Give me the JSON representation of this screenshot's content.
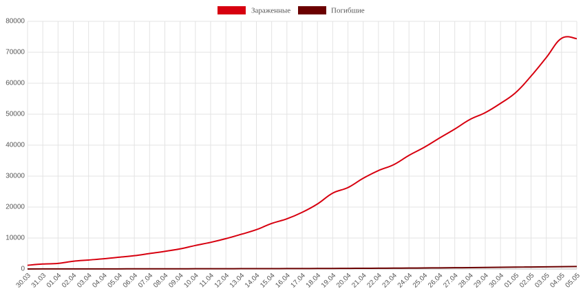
{
  "chart_data": {
    "type": "line",
    "categories": [
      "30.03",
      "31.03",
      "01.04",
      "02.04",
      "03.04",
      "04.04",
      "05.04",
      "06.04",
      "07.04",
      "08.04",
      "09.04",
      "10.04",
      "11.04",
      "12.04",
      "13.04",
      "14.04",
      "15.04",
      "16.04",
      "17.04",
      "18.04",
      "19.04",
      "20.04",
      "21.04",
      "22.04",
      "23.04",
      "24.04",
      "25.04",
      "26.04",
      "27.04",
      "28.04",
      "29.04",
      "30.04",
      "01.05",
      "02.05",
      "03.05",
      "04.05",
      "05.05"
    ],
    "series": [
      {
        "name": "Зараженные",
        "color": "#d7000f",
        "values": [
          1200,
          1600,
          1800,
          2500,
          2900,
          3300,
          3800,
          4300,
          5000,
          5700,
          6500,
          7600,
          8600,
          9800,
          11200,
          12700,
          14700,
          16200,
          18300,
          21000,
          24500,
          26300,
          29300,
          31800,
          33700,
          36700,
          39300,
          42300,
          45200,
          48300,
          50500,
          53500,
          57000,
          62300,
          68300,
          74500,
          74400
        ]
      },
      {
        "name": "Погибшие",
        "color": "#6b0000",
        "values": [
          10,
          15,
          20,
          25,
          30,
          35,
          40,
          45,
          50,
          55,
          60,
          70,
          80,
          90,
          100,
          110,
          120,
          130,
          140,
          160,
          180,
          200,
          220,
          240,
          270,
          300,
          330,
          370,
          410,
          450,
          500,
          550,
          600,
          650,
          700,
          750,
          800
        ]
      }
    ],
    "ylim": [
      0,
      80000
    ],
    "yticks": [
      0,
      10000,
      20000,
      30000,
      40000,
      50000,
      60000,
      70000,
      80000
    ],
    "grid": true,
    "legend": "top"
  }
}
